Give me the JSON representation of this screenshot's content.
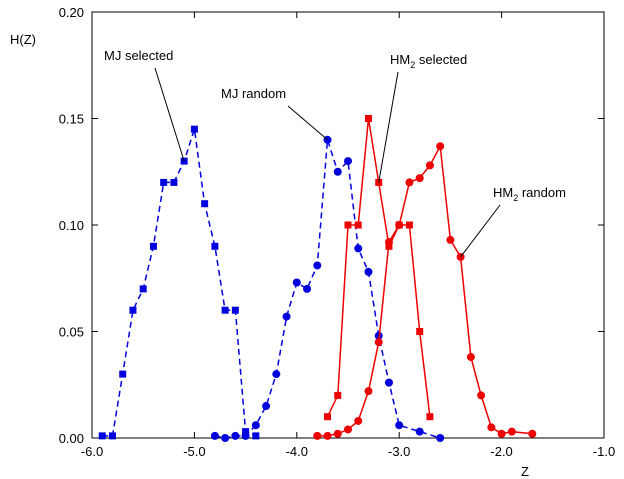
{
  "chart_data": {
    "type": "line",
    "title": "",
    "xlabel": "Z",
    "ylabel": "H(Z)",
    "xlim": [
      -6.0,
      -1.0
    ],
    "ylim": [
      0.0,
      0.2
    ],
    "xticks": [
      "-6.0",
      "-5.0",
      "-4.0",
      "-3.0",
      "-2.0",
      "-1.0"
    ],
    "yticks": [
      "0.00",
      "0.05",
      "0.10",
      "0.15",
      "0.20"
    ],
    "grid": false,
    "legend": "none",
    "series": [
      {
        "name": "MJ selected",
        "color": "#0000dd",
        "line": "dashed",
        "marker": "square",
        "x": [
          -5.9,
          -5.8,
          -5.7,
          -5.6,
          -5.5,
          -5.4,
          -5.3,
          -5.2,
          -5.1,
          -5.0,
          -4.9,
          -4.8,
          -4.7,
          -4.6,
          -4.5,
          -4.4
        ],
        "y": [
          0.001,
          0.001,
          0.03,
          0.06,
          0.07,
          0.09,
          0.12,
          0.12,
          0.13,
          0.145,
          0.11,
          0.09,
          0.06,
          0.06,
          0.003,
          0.001
        ]
      },
      {
        "name": "MJ random",
        "color": "#0000dd",
        "line": "dashed",
        "marker": "circle",
        "x": [
          -4.8,
          -4.7,
          -4.6,
          -4.5,
          -4.4,
          -4.3,
          -4.2,
          -4.1,
          -4.0,
          -3.9,
          -3.8,
          -3.7,
          -3.6,
          -3.5,
          -3.4,
          -3.3,
          -3.2,
          -3.1,
          -3.0,
          -2.8,
          -2.6
        ],
        "y": [
          0.001,
          0.0,
          0.001,
          0.001,
          0.006,
          0.015,
          0.03,
          0.057,
          0.073,
          0.07,
          0.081,
          0.14,
          0.125,
          0.13,
          0.089,
          0.078,
          0.048,
          0.026,
          0.006,
          0.003,
          0.0
        ]
      },
      {
        "name": "HM2 selected",
        "color": "#ee0000",
        "line": "solid",
        "marker": "square",
        "x": [
          -3.7,
          -3.6,
          -3.5,
          -3.4,
          -3.3,
          -3.2,
          -3.1,
          -3.0,
          -2.9,
          -2.8,
          -2.7
        ],
        "y": [
          0.01,
          0.02,
          0.1,
          0.1,
          0.15,
          0.12,
          0.09,
          0.1,
          0.1,
          0.05,
          0.01
        ]
      },
      {
        "name": "HM2 random",
        "color": "#ee0000",
        "line": "solid",
        "marker": "circle",
        "x": [
          -3.8,
          -3.7,
          -3.6,
          -3.5,
          -3.4,
          -3.3,
          -3.2,
          -3.1,
          -3.0,
          -2.9,
          -2.8,
          -2.7,
          -2.6,
          -2.5,
          -2.4,
          -2.3,
          -2.2,
          -2.1,
          -2.0,
          -1.9,
          -1.7
        ],
        "y": [
          0.001,
          0.001,
          0.002,
          0.004,
          0.008,
          0.022,
          0.045,
          0.092,
          0.1,
          0.12,
          0.122,
          0.128,
          0.137,
          0.093,
          0.085,
          0.038,
          0.02,
          0.005,
          0.002,
          0.003,
          0.002
        ]
      }
    ],
    "annotations": [
      {
        "base": "MJ selected",
        "sub": "",
        "suffix": "",
        "series_index": 0,
        "point_index": 8
      },
      {
        "base": "MJ random",
        "sub": "",
        "suffix": "",
        "series_index": 1,
        "point_index": 11
      },
      {
        "base": "HM",
        "sub": "2",
        "suffix": " selected",
        "series_index": 2,
        "point_index": 5
      },
      {
        "base": "HM",
        "sub": "2",
        "suffix": " random",
        "series_index": 3,
        "point_index": 14
      }
    ]
  }
}
